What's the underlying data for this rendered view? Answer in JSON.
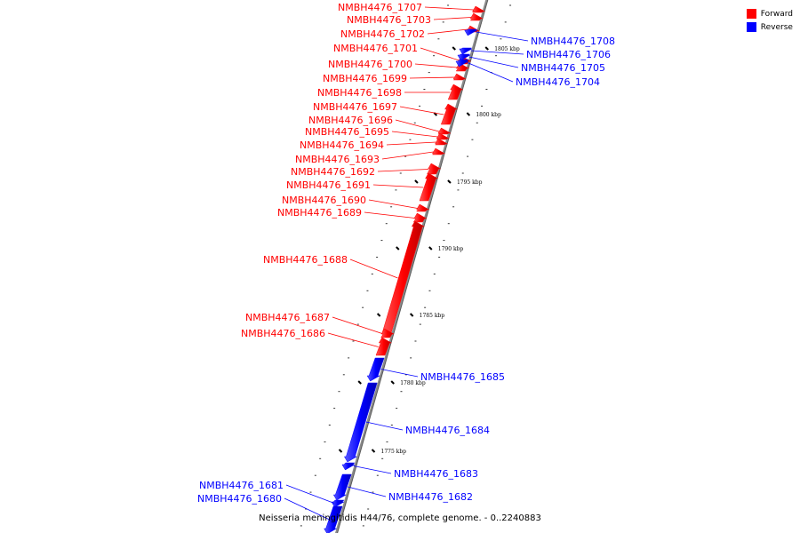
{
  "legend": {
    "forward_label": "Forward",
    "reverse_label": "Reverse",
    "forward_color": "#ff0000",
    "reverse_color": "#0000ff"
  },
  "caption": "Neisseria meningitidis H44/76, complete genome. - 0..2240883",
  "scale_labels": [
    "1805 kbp",
    "1800 kbp",
    "1795 kbp",
    "1790 kbp",
    "1785 kbp",
    "1780 kbp",
    "1775 kbp"
  ],
  "genes": [
    {
      "name": "NMBH4476_1707",
      "strand": "forward"
    },
    {
      "name": "NMBH4476_1703",
      "strand": "forward"
    },
    {
      "name": "NMBH4476_1702",
      "strand": "forward"
    },
    {
      "name": "NMBH4476_1701",
      "strand": "forward"
    },
    {
      "name": "NMBH4476_1700",
      "strand": "forward"
    },
    {
      "name": "NMBH4476_1699",
      "strand": "forward"
    },
    {
      "name": "NMBH4476_1698",
      "strand": "forward"
    },
    {
      "name": "NMBH4476_1697",
      "strand": "forward"
    },
    {
      "name": "NMBH4476_1696",
      "strand": "forward"
    },
    {
      "name": "NMBH4476_1695",
      "strand": "forward"
    },
    {
      "name": "NMBH4476_1694",
      "strand": "forward"
    },
    {
      "name": "NMBH4476_1693",
      "strand": "forward"
    },
    {
      "name": "NMBH4476_1692",
      "strand": "forward"
    },
    {
      "name": "NMBH4476_1691",
      "strand": "forward"
    },
    {
      "name": "NMBH4476_1690",
      "strand": "forward"
    },
    {
      "name": "NMBH4476_1689",
      "strand": "forward"
    },
    {
      "name": "NMBH4476_1688",
      "strand": "forward"
    },
    {
      "name": "NMBH4476_1687",
      "strand": "forward"
    },
    {
      "name": "NMBH4476_1686",
      "strand": "forward"
    },
    {
      "name": "NMBH4476_1708",
      "strand": "reverse"
    },
    {
      "name": "NMBH4476_1706",
      "strand": "reverse"
    },
    {
      "name": "NMBH4476_1705",
      "strand": "reverse"
    },
    {
      "name": "NMBH4476_1704",
      "strand": "reverse"
    },
    {
      "name": "NMBH4476_1685",
      "strand": "reverse"
    },
    {
      "name": "NMBH4476_1684",
      "strand": "reverse"
    },
    {
      "name": "NMBH4476_1683",
      "strand": "reverse"
    },
    {
      "name": "NMBH4476_1682",
      "strand": "reverse"
    },
    {
      "name": "NMBH4476_1681",
      "strand": "reverse"
    },
    {
      "name": "NMBH4476_1680",
      "strand": "reverse"
    }
  ]
}
